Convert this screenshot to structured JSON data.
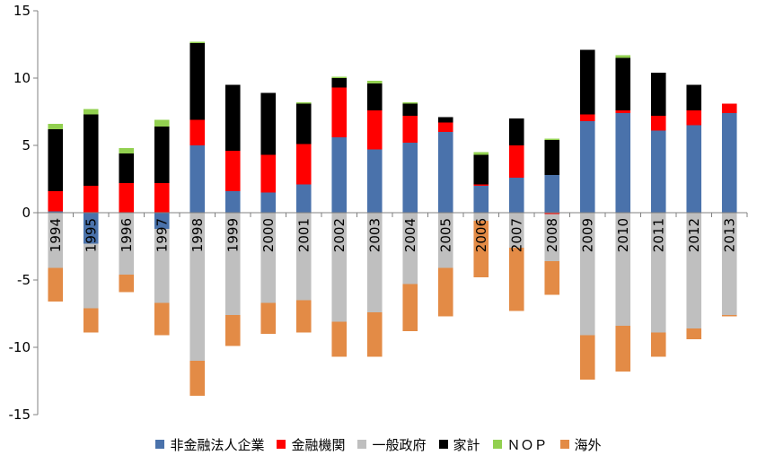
{
  "chart_data": {
    "type": "bar",
    "stacked": true,
    "title": "",
    "xlabel": "",
    "ylabel": "",
    "ylim": [
      -15,
      15
    ],
    "yticks": [
      15,
      10,
      5,
      0,
      -5,
      -10,
      -15
    ],
    "grid": false,
    "legend_position": "bottom",
    "categories": [
      "1994",
      "1995",
      "1996",
      "1997",
      "1998",
      "1999",
      "2000",
      "2001",
      "2002",
      "2003",
      "2004",
      "2005",
      "2006",
      "2007",
      "2008",
      "2009",
      "2010",
      "2011",
      "2012",
      "2013"
    ],
    "series": [
      {
        "name": "非金融法人企業",
        "color": "#4a72ab",
        "values": [
          0.1,
          -2.3,
          0.0,
          -1.2,
          5.0,
          1.6,
          1.5,
          2.1,
          5.6,
          4.7,
          5.2,
          6.0,
          2.0,
          2.6,
          2.8,
          6.8,
          7.4,
          6.1,
          6.5,
          7.4
        ]
      },
      {
        "name": "金融機関",
        "color": "#ff0000",
        "values": [
          1.5,
          2.0,
          2.2,
          2.2,
          1.9,
          3.0,
          2.8,
          3.0,
          3.7,
          2.9,
          2.0,
          0.7,
          0.1,
          2.4,
          -0.1,
          0.5,
          0.2,
          1.1,
          1.1,
          0.7
        ]
      },
      {
        "name": "一般政府",
        "color": "#bfbfbf",
        "values": [
          -4.1,
          -4.8,
          -4.6,
          -5.5,
          -11.0,
          -7.6,
          -6.7,
          -6.5,
          -8.1,
          -7.4,
          -5.3,
          -4.1,
          -0.6,
          -2.6,
          -3.5,
          -9.1,
          -8.4,
          -8.9,
          -8.6,
          -7.6
        ]
      },
      {
        "name": "家計",
        "color": "#000000",
        "values": [
          4.6,
          5.3,
          2.2,
          4.2,
          5.7,
          4.9,
          4.6,
          3.0,
          0.7,
          2.0,
          0.9,
          0.4,
          2.2,
          2.0,
          2.6,
          4.8,
          3.9,
          3.2,
          1.9,
          0.0
        ]
      },
      {
        "name": "ＮＯＰ",
        "color": "#92d050",
        "values": [
          0.4,
          0.4,
          0.4,
          0.5,
          0.1,
          0.0,
          0.0,
          0.1,
          0.1,
          0.2,
          0.1,
          0.0,
          0.2,
          0.0,
          0.1,
          0.0,
          0.2,
          0.0,
          0.0,
          0.0
        ]
      },
      {
        "name": "海外",
        "color": "#e38b46",
        "values": [
          -2.5,
          -1.8,
          -1.3,
          -2.4,
          -2.6,
          -2.3,
          -2.3,
          -2.4,
          -2.6,
          -3.3,
          -3.5,
          -3.6,
          -4.2,
          -4.7,
          -2.5,
          -3.3,
          -3.4,
          -1.8,
          -0.8,
          -0.1
        ]
      }
    ]
  }
}
